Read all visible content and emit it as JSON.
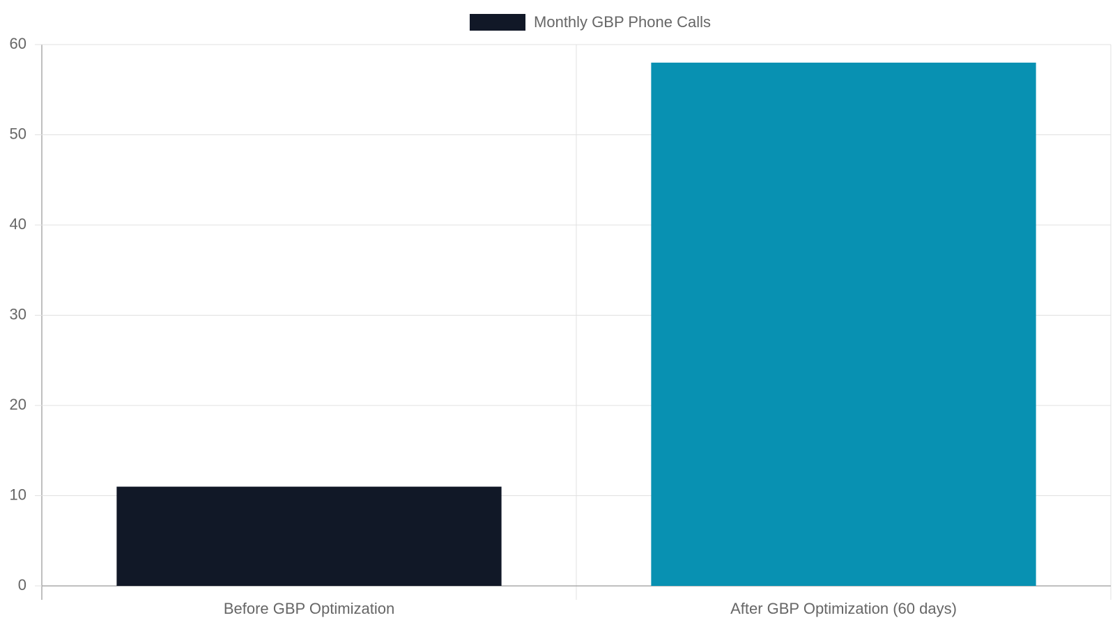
{
  "chart_data": {
    "type": "bar",
    "categories": [
      "Before GBP Optimization",
      "After GBP Optimization (60 days)"
    ],
    "series": [
      {
        "name": "Monthly GBP Phone Calls",
        "colors": [
          "#111827",
          "#0891b2"
        ],
        "values": [
          11,
          58
        ]
      }
    ],
    "ylim": [
      0,
      60
    ],
    "yticks": [
      0,
      10,
      20,
      30,
      40,
      50,
      60
    ],
    "grid": true,
    "legend": "top"
  }
}
